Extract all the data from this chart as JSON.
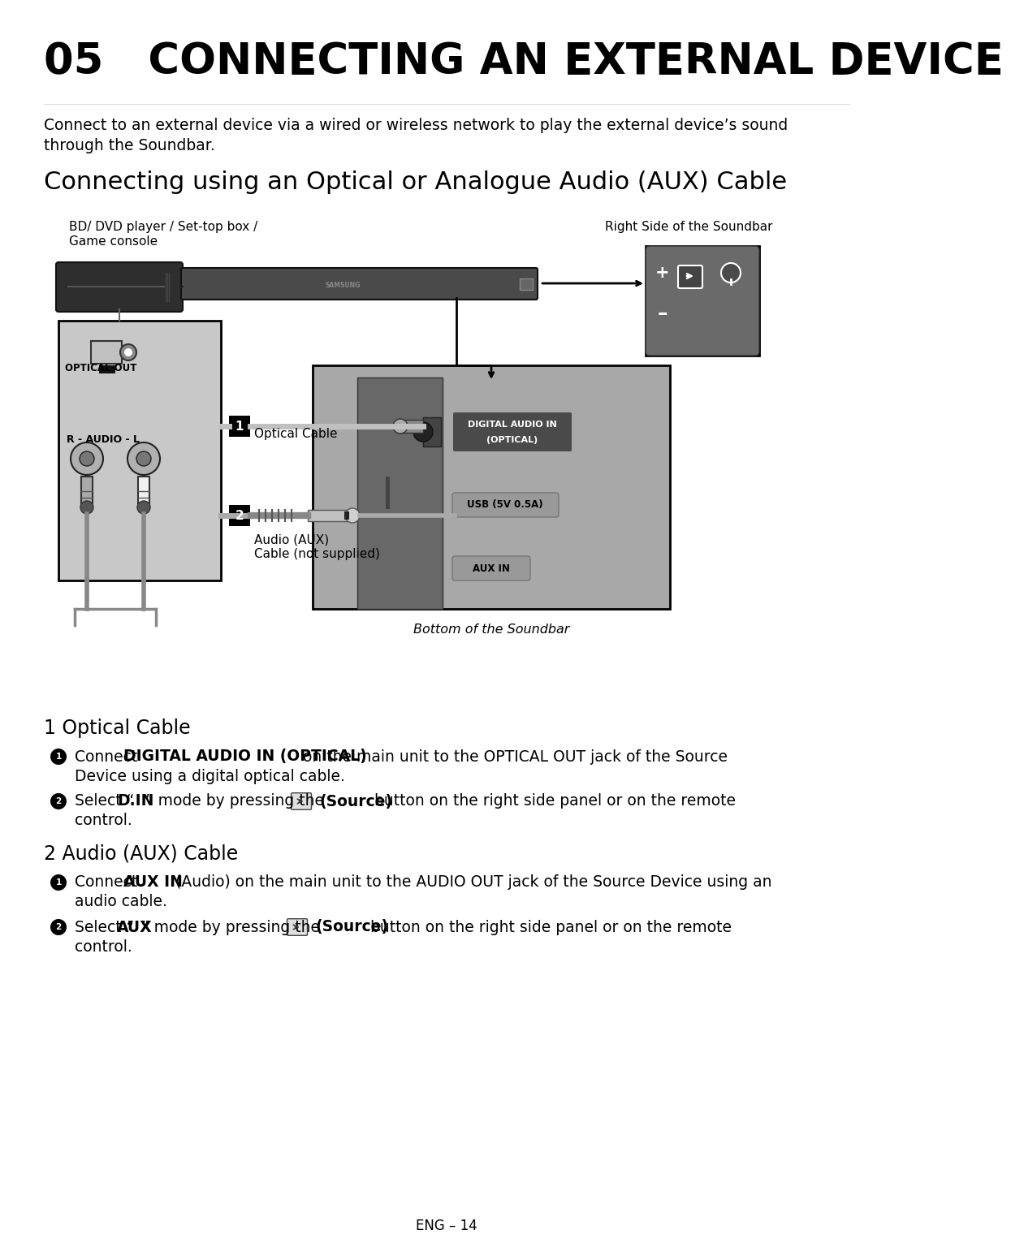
{
  "title": "05   CONNECTING AN EXTERNAL DEVICE",
  "subtitle": "Connecting using an Optical or Analogue Audio (AUX) Cable",
  "intro_line1": "Connect to an external device via a wired or wireless network to play the external device’s sound",
  "intro_line2": "through the Soundbar.",
  "label_bd": "BD/ DVD player / Set-top box /",
  "label_game": "Game console",
  "label_right": "Right Side of the Soundbar",
  "label_optical_cable": "Optical Cable",
  "label_audio_aux": "Audio (AUX)",
  "label_not_supplied": "Cable (not supplied)",
  "label_bottom": "Bottom of the Soundbar",
  "label_optical_out": "OPTICAL OUT",
  "label_r_audio_l": "R - AUDIO - L",
  "label_digital_audio": "DIGITAL AUDIO IN\n(OPTICAL)",
  "label_usb": "USB (5V 0.5A)",
  "label_aux_in": "AUX IN",
  "s1_title": "1 Optical Cable",
  "s2_title": "2 Audio (AUX) Cable",
  "s1_b1_pre": "Connect ",
  "s1_b1_bold": "DIGITAL AUDIO IN (OPTICAL)",
  "s1_b1_post": " on the main unit to the OPTICAL OUT jack of the Source\nDevice using a digital optical cable.",
  "s1_b2_pre": "Select “",
  "s1_b2_bold1": "D.IN",
  "s1_b2_mid": "” mode by pressing the",
  "s1_b2_bold2": "(Source)",
  "s1_b2_post": "button on the right side panel or on the remote\ncontrol.",
  "s2_b1_pre": "Connect ",
  "s2_b1_bold": "AUX IN",
  "s2_b1_post": " (Audio) on the main unit to the AUDIO OUT jack of the Source Device using an\naudio cable.",
  "s2_b2_pre": "Select “",
  "s2_b2_bold1": "AUX",
  "s2_b2_mid": "” mode by pressing the",
  "s2_b2_bold2": "(Source)",
  "s2_b2_post": "button on the right side panel or on the remote\ncontrol.",
  "footer": "ENG – 14",
  "bg": "#ffffff",
  "fg": "#000000"
}
